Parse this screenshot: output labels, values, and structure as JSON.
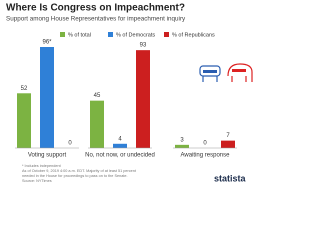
{
  "chart_data": {
    "type": "bar",
    "title": "Where Is Congress on Impeachment?",
    "subtitle": "Support among House Representatives for impeachment inquiry",
    "categories": [
      "Voting support",
      "No, not now, or undecided",
      "Awaiting response"
    ],
    "series": [
      {
        "name": "% of total",
        "color": "#7cb342",
        "values": [
          52,
          45,
          3
        ]
      },
      {
        "name": "% of Democrats",
        "color": "#2f80d7",
        "values": [
          96,
          4,
          0
        ],
        "value_labels": [
          "96*",
          "4",
          "0"
        ]
      },
      {
        "name": "% of Republicans",
        "color": "#cc1f1f",
        "values": [
          0,
          93,
          7
        ]
      }
    ],
    "legend": "top",
    "notes": [
      "* Includes independent",
      "As of October 9, 2019 4:00 a.m. EDT. Majority of at least 51 percent",
      "needed in the House for proceedings to pass on to the Senate.",
      "Source: NYTimes"
    ]
  },
  "logo": "statista"
}
